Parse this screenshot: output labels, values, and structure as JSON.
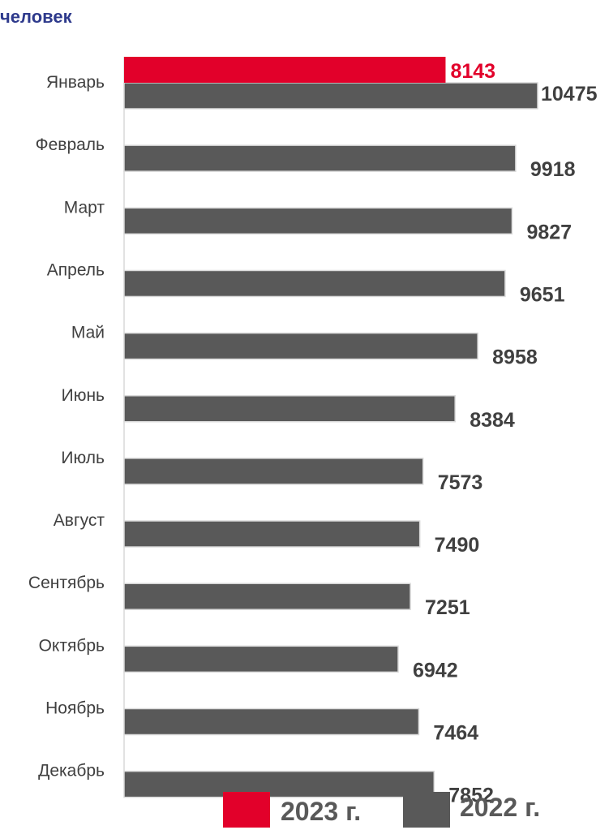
{
  "unit_label": "человек",
  "chart_data": {
    "type": "bar",
    "orientation": "horizontal",
    "categories": [
      "Январь",
      "Февраль",
      "Март",
      "Апрель",
      "Май",
      "Июнь",
      "Июль",
      "Август",
      "Сентябрь",
      "Октябрь",
      "Ноябрь",
      "Декабрь"
    ],
    "series": [
      {
        "name": "2023 г.",
        "color": "#e2002a",
        "values": [
          8143,
          null,
          null,
          null,
          null,
          null,
          null,
          null,
          null,
          null,
          null,
          null
        ]
      },
      {
        "name": "2022 г.",
        "color": "#595959",
        "values": [
          10475,
          9918,
          9827,
          9651,
          8958,
          8384,
          7573,
          7490,
          7251,
          6942,
          7464,
          7852
        ]
      }
    ],
    "xlim": [
      0,
      11000
    ],
    "grid": false,
    "legend_position": "bottom"
  }
}
